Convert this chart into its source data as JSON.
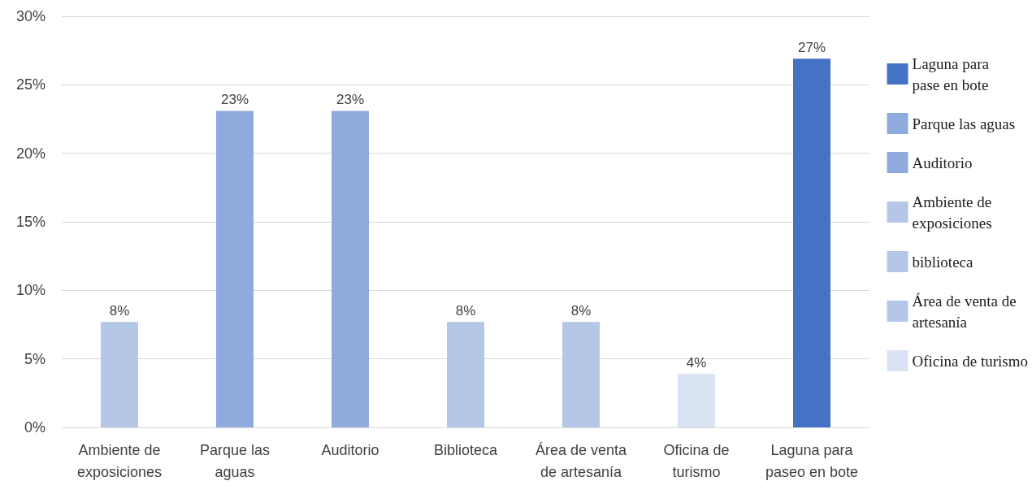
{
  "chart_data": {
    "type": "bar",
    "stacked": true,
    "categories": [
      "Ambiente de\nexposiciones",
      "Parque las\naguas",
      "Auditorio",
      "Biblioteca",
      "Área de venta\nde artesanía",
      "Oficina de\nturismo",
      "Laguna para\npaseo en bote"
    ],
    "series": [
      {
        "name": "Laguna para\npase en bote",
        "color": "#4472c4",
        "values": [
          null,
          null,
          null,
          null,
          null,
          null,
          26.9
        ],
        "value_labels": [
          null,
          null,
          null,
          null,
          null,
          null,
          "27%"
        ]
      },
      {
        "name": "Parque las aguas",
        "color": "#8faadc",
        "values": [
          null,
          23.1,
          null,
          null,
          null,
          null,
          null
        ],
        "value_labels": [
          null,
          "23%",
          null,
          null,
          null,
          null,
          null
        ]
      },
      {
        "name": "Auditorio",
        "color": "#8faadc",
        "values": [
          null,
          null,
          23.1,
          null,
          null,
          null,
          null
        ],
        "value_labels": [
          null,
          null,
          "23%",
          null,
          null,
          null,
          null
        ]
      },
      {
        "name": "Ambiente de\nexposiciones",
        "color": "#b4c7e7",
        "values": [
          7.7,
          null,
          null,
          null,
          null,
          null,
          null
        ],
        "value_labels": [
          "8%",
          null,
          null,
          null,
          null,
          null,
          null
        ]
      },
      {
        "name": "biblioteca",
        "color": "#b4c7e7",
        "values": [
          null,
          null,
          null,
          7.7,
          null,
          null,
          null
        ],
        "value_labels": [
          null,
          null,
          null,
          "8%",
          null,
          null,
          null
        ]
      },
      {
        "name": "Área de venta de\nartesanía",
        "color": "#b4c7e7",
        "values": [
          null,
          null,
          null,
          null,
          7.7,
          null,
          null
        ],
        "value_labels": [
          null,
          null,
          null,
          null,
          "8%",
          null,
          null
        ]
      },
      {
        "name": "Oficina de turismo",
        "color": "#dae3f3",
        "values": [
          null,
          null,
          null,
          null,
          null,
          3.9,
          null
        ],
        "value_labels": [
          null,
          null,
          null,
          null,
          null,
          "4%",
          null
        ]
      }
    ],
    "ylim": [
      0,
      30
    ],
    "yticks": [
      {
        "value": 0,
        "label": "0%"
      },
      {
        "value": 5,
        "label": "5%"
      },
      {
        "value": 10,
        "label": "10%"
      },
      {
        "value": 15,
        "label": "15%"
      },
      {
        "value": 20,
        "label": "20%"
      },
      {
        "value": 25,
        "label": "25%"
      },
      {
        "value": 30,
        "label": "30%"
      }
    ],
    "grid": "y",
    "legend": "right"
  }
}
